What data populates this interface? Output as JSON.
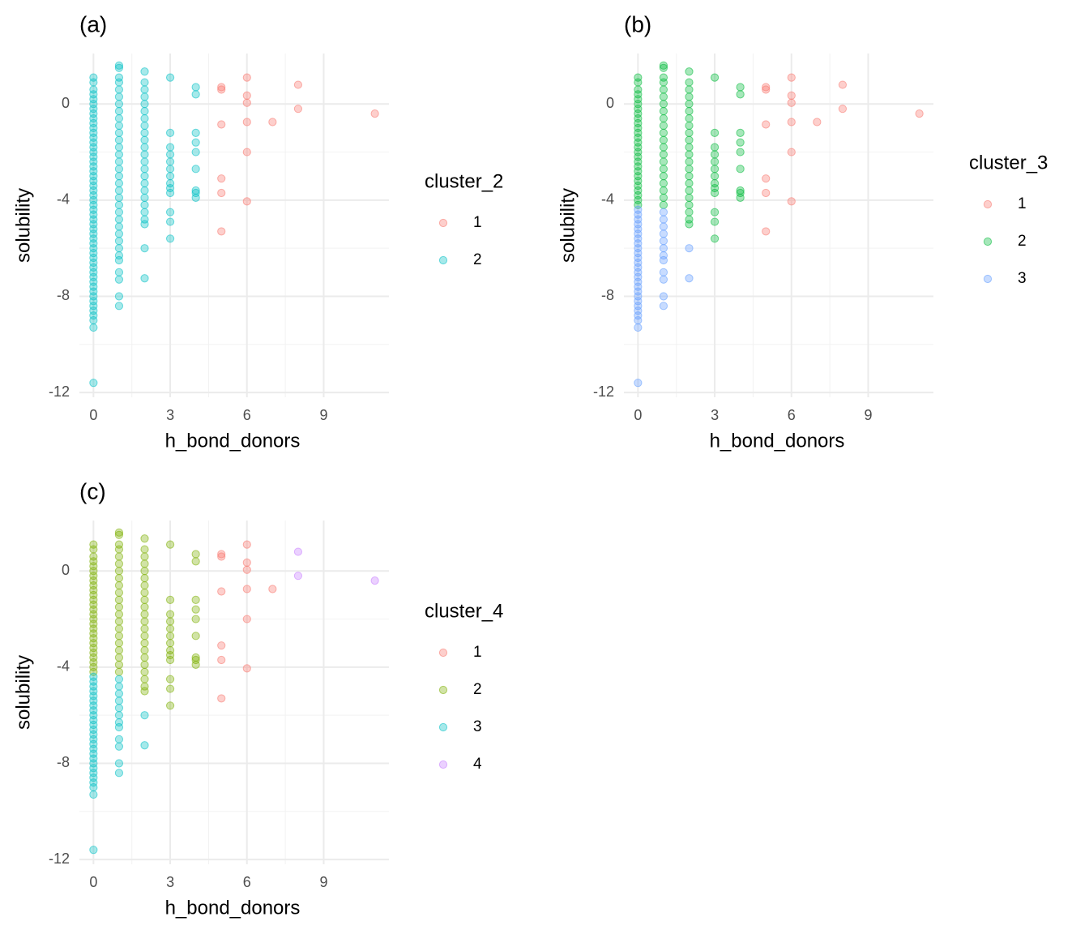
{
  "chart_data": [
    {
      "type": "scatter",
      "title": "(a)",
      "x_label": "h_bond_donors",
      "y_label": "solubility",
      "legend_title": "cluster_2",
      "xlim": [
        -0.55,
        11.55
      ],
      "ylim": [
        -12.2,
        2.1
      ],
      "xticks": [
        0,
        3,
        6,
        9
      ],
      "yticks": [
        -12,
        -8,
        -4,
        0
      ],
      "grid": true,
      "series": [
        {
          "name": "1",
          "color": "#F8766D",
          "x": [
            5,
            5,
            5,
            5,
            5,
            5,
            6,
            6,
            6,
            6,
            6,
            6,
            7,
            8,
            8,
            11
          ],
          "y": [
            0.7,
            0.6,
            -0.85,
            -3.1,
            -3.7,
            -5.3,
            1.1,
            0.35,
            0.05,
            -0.75,
            -2,
            -4.05,
            -0.75,
            0.8,
            -0.2,
            -0.4
          ]
        },
        {
          "name": "2",
          "color": "#00BFC4",
          "x": [
            0,
            0,
            0,
            0,
            0,
            0,
            0,
            0,
            0,
            0,
            0,
            0,
            0,
            0,
            0,
            0,
            0,
            0,
            0,
            0,
            0,
            0,
            0,
            0,
            0,
            0,
            0,
            0,
            0,
            0,
            0,
            0,
            0,
            0,
            0,
            0,
            0,
            0,
            0,
            0,
            0,
            0,
            0,
            0,
            0,
            0,
            0,
            0,
            0,
            0,
            0,
            0,
            0,
            1,
            1,
            1,
            1,
            1,
            1,
            1,
            1,
            1,
            1,
            1,
            1,
            1,
            1,
            1,
            1,
            1,
            1,
            1,
            1,
            1,
            1,
            1,
            1,
            1,
            1,
            1,
            1,
            1,
            1,
            1,
            1,
            1,
            2,
            2,
            2,
            2,
            2,
            2,
            2,
            2,
            2,
            2,
            2,
            2,
            2,
            2,
            2,
            2,
            2,
            2,
            2,
            2,
            2,
            2,
            2,
            2,
            3,
            3,
            3,
            3,
            3,
            3,
            3,
            3,
            3,
            3,
            3,
            3,
            3,
            4,
            4,
            4,
            4,
            4,
            4,
            4,
            4,
            4
          ],
          "y": [
            1.1,
            0.9,
            0.6,
            0.4,
            0.2,
            0,
            -0.2,
            -0.4,
            -0.6,
            -0.8,
            -1,
            -1.2,
            -1.4,
            -1.6,
            -1.8,
            -2,
            -2.2,
            -2.4,
            -2.6,
            -2.8,
            -3,
            -3.2,
            -3.4,
            -3.6,
            -3.8,
            -4,
            -4.2,
            -4.4,
            -4.6,
            -4.8,
            -5,
            -5.2,
            -5.4,
            -5.6,
            -5.8,
            -6,
            -6.2,
            -6.4,
            -6.6,
            -6.8,
            -7,
            -7.2,
            -7.4,
            -7.6,
            -7.8,
            -8,
            -8.2,
            -8.4,
            -8.6,
            -8.8,
            -9,
            -9.3,
            -11.6,
            1.6,
            1.5,
            1.1,
            0.9,
            0.6,
            0.3,
            0,
            -0.3,
            -0.6,
            -0.9,
            -1.2,
            -1.5,
            -1.8,
            -2.1,
            -2.4,
            -2.7,
            -3,
            -3.3,
            -3.6,
            -3.9,
            -4.2,
            -4.5,
            -4.8,
            -5.1,
            -5.4,
            -5.7,
            -6,
            -6.3,
            -6.5,
            -7,
            -7.3,
            -8,
            -8.4,
            1.35,
            0.9,
            0.6,
            0.3,
            0,
            -0.3,
            -0.6,
            -0.9,
            -1.2,
            -1.5,
            -1.8,
            -2.1,
            -2.4,
            -2.7,
            -3,
            -3.3,
            -3.6,
            -3.9,
            -4.2,
            -4.5,
            -4.8,
            -5,
            -6,
            -7.25,
            1.1,
            -1.2,
            -1.8,
            -2.1,
            -2.4,
            -2.7,
            -3,
            -3.3,
            -3.5,
            -3.7,
            -4.5,
            -4.9,
            -5.6,
            0.7,
            0.4,
            -1.2,
            -1.6,
            -2,
            -2.7,
            -3.6,
            -3.7,
            -3.9
          ]
        }
      ]
    },
    {
      "type": "scatter",
      "title": "(b)",
      "x_label": "h_bond_donors",
      "y_label": "solubility",
      "legend_title": "cluster_3",
      "xlim": [
        -0.55,
        11.55
      ],
      "ylim": [
        -12.2,
        2.1
      ],
      "xticks": [
        0,
        3,
        6,
        9
      ],
      "yticks": [
        -12,
        -8,
        -4,
        0
      ],
      "grid": true,
      "series": [
        {
          "name": "1",
          "color": "#F8766D",
          "x": [
            5,
            5,
            5,
            5,
            5,
            5,
            6,
            6,
            6,
            6,
            6,
            6,
            7,
            8,
            8,
            11
          ],
          "y": [
            0.7,
            0.6,
            -0.85,
            -3.1,
            -3.7,
            -5.3,
            1.1,
            0.35,
            0.05,
            -0.75,
            -2,
            -4.05,
            -0.75,
            0.8,
            -0.2,
            -0.4
          ]
        },
        {
          "name": "2",
          "color": "#00BA38",
          "x": [
            0,
            0,
            0,
            0,
            0,
            0,
            0,
            0,
            0,
            0,
            0,
            0,
            0,
            0,
            0,
            0,
            0,
            0,
            0,
            0,
            0,
            0,
            0,
            0,
            0,
            0,
            0,
            1,
            1,
            1,
            1,
            1,
            1,
            1,
            1,
            1,
            1,
            1,
            1,
            1,
            1,
            1,
            1,
            1,
            1,
            1,
            1,
            1,
            2,
            2,
            2,
            2,
            2,
            2,
            2,
            2,
            2,
            2,
            2,
            2,
            2,
            2,
            2,
            2,
            2,
            2,
            2,
            2,
            2,
            2,
            3,
            3,
            3,
            3,
            3,
            3,
            3,
            3,
            3,
            3,
            3,
            3,
            3,
            4,
            4,
            4,
            4,
            4,
            4,
            4,
            4,
            4
          ],
          "y": [
            1.1,
            0.9,
            0.6,
            0.4,
            0.2,
            0,
            -0.2,
            -0.4,
            -0.6,
            -0.8,
            -1,
            -1.2,
            -1.4,
            -1.6,
            -1.8,
            -2,
            -2.2,
            -2.4,
            -2.6,
            -2.8,
            -3,
            -3.2,
            -3.4,
            -3.6,
            -3.8,
            -4,
            -4.2,
            1.6,
            1.5,
            1.1,
            0.9,
            0.6,
            0.3,
            0,
            -0.3,
            -0.6,
            -0.9,
            -1.2,
            -1.5,
            -1.8,
            -2.1,
            -2.4,
            -2.7,
            -3,
            -3.3,
            -3.6,
            -3.9,
            -4.2,
            1.35,
            0.9,
            0.6,
            0.3,
            0,
            -0.3,
            -0.6,
            -0.9,
            -1.2,
            -1.5,
            -1.8,
            -2.1,
            -2.4,
            -2.7,
            -3,
            -3.3,
            -3.6,
            -3.9,
            -4.2,
            -4.5,
            -4.8,
            -5,
            1.1,
            -1.2,
            -1.8,
            -2.1,
            -2.4,
            -2.7,
            -3,
            -3.3,
            -3.5,
            -3.7,
            -4.5,
            -4.9,
            -5.6,
            0.7,
            0.4,
            -1.2,
            -1.6,
            -2,
            -2.7,
            -3.6,
            -3.7,
            -3.9
          ]
        },
        {
          "name": "3",
          "color": "#619CFF",
          "x": [
            0,
            0,
            0,
            0,
            0,
            0,
            0,
            0,
            0,
            0,
            0,
            0,
            0,
            0,
            0,
            0,
            0,
            0,
            0,
            0,
            0,
            0,
            0,
            0,
            0,
            0,
            1,
            1,
            1,
            1,
            1,
            1,
            1,
            1,
            1,
            1,
            1,
            1,
            2,
            2
          ],
          "y": [
            -4.4,
            -4.6,
            -4.8,
            -5,
            -5.2,
            -5.4,
            -5.6,
            -5.8,
            -6,
            -6.2,
            -6.4,
            -6.6,
            -6.8,
            -7,
            -7.2,
            -7.4,
            -7.6,
            -7.8,
            -8,
            -8.2,
            -8.4,
            -8.6,
            -8.8,
            -9,
            -9.3,
            -11.6,
            -4.5,
            -4.8,
            -5.1,
            -5.4,
            -5.7,
            -6,
            -6.3,
            -6.5,
            -7,
            -7.3,
            -8,
            -8.4,
            -6,
            -7.25
          ]
        }
      ]
    },
    {
      "type": "scatter",
      "title": "(c)",
      "x_label": "h_bond_donors",
      "y_label": "solubility",
      "legend_title": "cluster_4",
      "xlim": [
        -0.55,
        11.55
      ],
      "ylim": [
        -12.2,
        2.1
      ],
      "xticks": [
        0,
        3,
        6,
        9
      ],
      "yticks": [
        -12,
        -8,
        -4,
        0
      ],
      "grid": true,
      "series": [
        {
          "name": "1",
          "color": "#F8766D",
          "x": [
            5,
            5,
            5,
            5,
            5,
            5,
            6,
            6,
            6,
            6,
            6,
            6,
            7
          ],
          "y": [
            0.7,
            0.6,
            -0.85,
            -3.1,
            -3.7,
            -5.3,
            1.1,
            0.35,
            0.05,
            -0.75,
            -2,
            -4.05,
            -0.75
          ]
        },
        {
          "name": "2",
          "color": "#7CAE00",
          "x": [
            0,
            0,
            0,
            0,
            0,
            0,
            0,
            0,
            0,
            0,
            0,
            0,
            0,
            0,
            0,
            0,
            0,
            0,
            0,
            0,
            0,
            0,
            0,
            0,
            0,
            0,
            0,
            1,
            1,
            1,
            1,
            1,
            1,
            1,
            1,
            1,
            1,
            1,
            1,
            1,
            1,
            1,
            1,
            1,
            1,
            1,
            1,
            1,
            2,
            2,
            2,
            2,
            2,
            2,
            2,
            2,
            2,
            2,
            2,
            2,
            2,
            2,
            2,
            2,
            2,
            2,
            2,
            2,
            2,
            2,
            3,
            3,
            3,
            3,
            3,
            3,
            3,
            3,
            3,
            3,
            3,
            3,
            3,
            4,
            4,
            4,
            4,
            4,
            4,
            4,
            4,
            4
          ],
          "y": [
            1.1,
            0.9,
            0.6,
            0.4,
            0.2,
            0,
            -0.2,
            -0.4,
            -0.6,
            -0.8,
            -1,
            -1.2,
            -1.4,
            -1.6,
            -1.8,
            -2,
            -2.2,
            -2.4,
            -2.6,
            -2.8,
            -3,
            -3.2,
            -3.4,
            -3.6,
            -3.8,
            -4,
            -4.2,
            1.6,
            1.5,
            1.1,
            0.9,
            0.6,
            0.3,
            0,
            -0.3,
            -0.6,
            -0.9,
            -1.2,
            -1.5,
            -1.8,
            -2.1,
            -2.4,
            -2.7,
            -3,
            -3.3,
            -3.6,
            -3.9,
            -4.2,
            1.35,
            0.9,
            0.6,
            0.3,
            0,
            -0.3,
            -0.6,
            -0.9,
            -1.2,
            -1.5,
            -1.8,
            -2.1,
            -2.4,
            -2.7,
            -3,
            -3.3,
            -3.6,
            -3.9,
            -4.2,
            -4.5,
            -4.8,
            -5,
            1.1,
            -1.2,
            -1.8,
            -2.1,
            -2.4,
            -2.7,
            -3,
            -3.3,
            -3.5,
            -3.7,
            -4.5,
            -4.9,
            -5.6,
            0.7,
            0.4,
            -1.2,
            -1.6,
            -2,
            -2.7,
            -3.6,
            -3.7,
            -3.9
          ]
        },
        {
          "name": "3",
          "color": "#00BFC4",
          "x": [
            0,
            0,
            0,
            0,
            0,
            0,
            0,
            0,
            0,
            0,
            0,
            0,
            0,
            0,
            0,
            0,
            0,
            0,
            0,
            0,
            0,
            0,
            0,
            0,
            0,
            0,
            1,
            1,
            1,
            1,
            1,
            1,
            1,
            1,
            1,
            1,
            1,
            1,
            2,
            2
          ],
          "y": [
            -4.4,
            -4.6,
            -4.8,
            -5,
            -5.2,
            -5.4,
            -5.6,
            -5.8,
            -6,
            -6.2,
            -6.4,
            -6.6,
            -6.8,
            -7,
            -7.2,
            -7.4,
            -7.6,
            -7.8,
            -8,
            -8.2,
            -8.4,
            -8.6,
            -8.8,
            -9,
            -9.3,
            -11.6,
            -4.5,
            -4.8,
            -5.1,
            -5.4,
            -5.7,
            -6,
            -6.3,
            -6.5,
            -7,
            -7.3,
            -8,
            -8.4,
            -6,
            -7.25
          ]
        },
        {
          "name": "4",
          "color": "#C77CFF",
          "x": [
            8,
            8,
            11
          ],
          "y": [
            0.8,
            -0.2,
            -0.4
          ]
        }
      ]
    }
  ]
}
